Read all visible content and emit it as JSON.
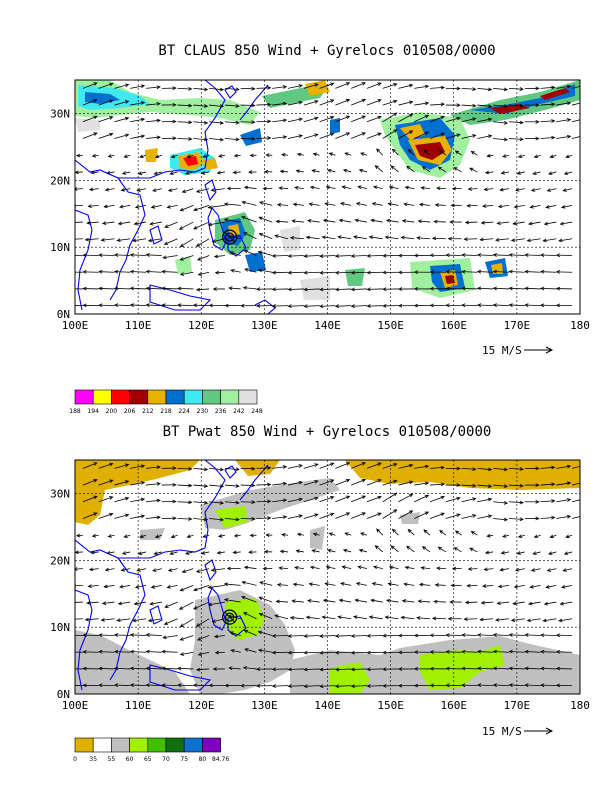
{
  "chart_data": [
    {
      "type": "map",
      "title": "BT CLAUS 850 Wind + Gyrelocs 010508/0000",
      "x_ticks": [
        "100E",
        "110E",
        "120E",
        "130E",
        "140E",
        "150E",
        "160E",
        "170E",
        "180"
      ],
      "y_ticks": [
        "0N",
        "10N",
        "20N",
        "30N"
      ],
      "lon_range": [
        100,
        180
      ],
      "lat_range": [
        0,
        35
      ],
      "grid": true,
      "vector_scale_label": "15 M/S",
      "colorbar": {
        "levels": [
          "188",
          "194",
          "200",
          "206",
          "212",
          "218",
          "224",
          "230",
          "236",
          "242",
          "248"
        ],
        "colors": [
          "#ff00ff",
          "#ffff00",
          "#ff0000",
          "#a00000",
          "#e8b000",
          "#0070d0",
          "#40e8f0",
          "#60c880",
          "#a0f0a0",
          "#e0e0e0"
        ]
      },
      "gyreloc": {
        "lon": 124.5,
        "lat": 11.5
      }
    },
    {
      "type": "map",
      "title": "BT Pwat 850 Wind + Gyrelocs 010508/0000",
      "x_ticks": [
        "100E",
        "110E",
        "120E",
        "130E",
        "140E",
        "150E",
        "160E",
        "170E",
        "180"
      ],
      "y_ticks": [
        "0N",
        "10N",
        "20N",
        "30N"
      ],
      "lon_range": [
        100,
        180
      ],
      "lat_range": [
        0,
        35
      ],
      "grid": true,
      "vector_scale_label": "15 M/S",
      "colorbar": {
        "levels": [
          "0",
          "35",
          "55",
          "60",
          "65",
          "70",
          "75",
          "80",
          "84.76"
        ],
        "colors": [
          "#e0b000",
          "#ffffff",
          "#c0c0c0",
          "#a0f000",
          "#40c000",
          "#107010",
          "#1070d0",
          "#8000c0"
        ]
      },
      "gyreloc": {
        "lon": 124.5,
        "lat": 11.5
      }
    }
  ]
}
